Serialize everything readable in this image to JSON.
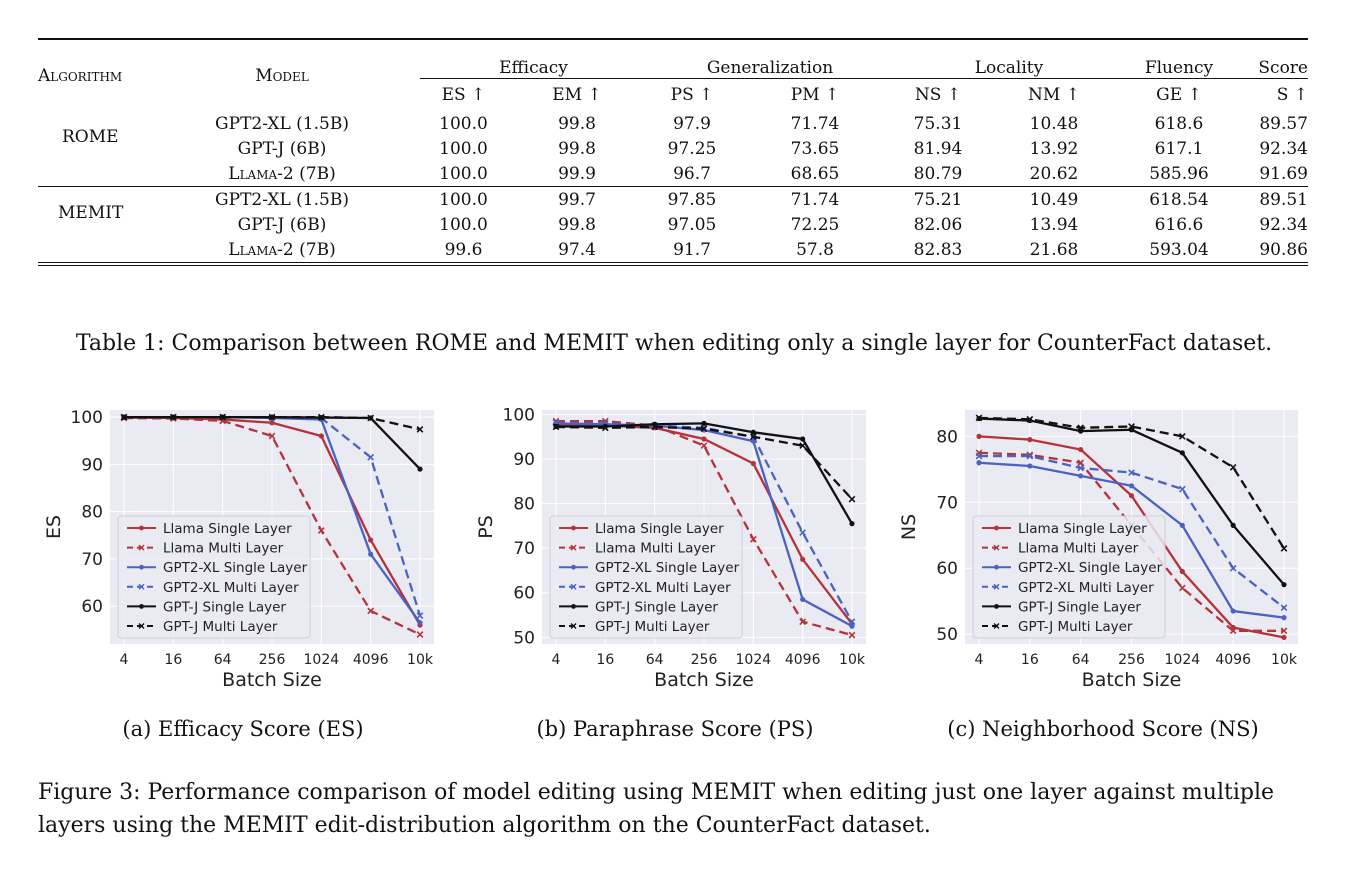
{
  "table": {
    "columns": {
      "algorithm": "Algorithm",
      "model": "Model",
      "groups": [
        {
          "name": "Efficacy",
          "cols": [
            "ES ↑",
            "EM ↑"
          ]
        },
        {
          "name": "Generalization",
          "cols": [
            "PS ↑",
            "PM ↑"
          ]
        },
        {
          "name": "Locality",
          "cols": [
            "NS ↑",
            "NM ↑"
          ]
        },
        {
          "name": "Fluency",
          "cols": [
            "GE ↑"
          ]
        },
        {
          "name": "Score",
          "cols": [
            "S ↑"
          ]
        }
      ]
    },
    "blocks": [
      {
        "algorithm": "ROME",
        "rows": [
          {
            "model": "GPT2-XL (1.5B)",
            "values": [
              "100.0",
              "99.8",
              "97.9",
              "71.74",
              "75.31",
              "10.48",
              "618.6",
              "89.57"
            ]
          },
          {
            "model": "GPT-J (6B)",
            "values": [
              "100.0",
              "99.8",
              "97.25",
              "73.65",
              "81.94",
              "13.92",
              "617.1",
              "92.34"
            ]
          },
          {
            "model": "Llama-2 (7B)",
            "values": [
              "100.0",
              "99.9",
              "96.7",
              "68.65",
              "80.79",
              "20.62",
              "585.96",
              "91.69"
            ]
          }
        ]
      },
      {
        "algorithm": "MEMIT",
        "rows": [
          {
            "model": "GPT2-XL (1.5B)",
            "values": [
              "100.0",
              "99.7",
              "97.85",
              "71.74",
              "75.21",
              "10.49",
              "618.54",
              "89.51"
            ]
          },
          {
            "model": "GPT-J (6B)",
            "values": [
              "100.0",
              "99.8",
              "97.05",
              "72.25",
              "82.06",
              "13.94",
              "616.6",
              "92.34"
            ]
          },
          {
            "model": "Llama-2 (7B)",
            "values": [
              "99.6",
              "97.4",
              "91.7",
              "57.8",
              "82.83",
              "21.68",
              "593.04",
              "90.86"
            ]
          }
        ]
      }
    ],
    "caption": "Table 1: Comparison between ROME and MEMIT when editing only a single layer for CounterFact dataset."
  },
  "figure": {
    "subcaptions": [
      "(a) Efficacy Score (ES)",
      "(b) Paraphrase Score (PS)",
      "(c) Neighborhood Score (NS)"
    ],
    "caption": "Figure 3: Performance comparison of model editing using MEMIT when editing just one layer against multiple layers using the MEMIT edit-distribution algorithm on the CounterFact dataset."
  },
  "colors": {
    "llama": "#b5323a",
    "gpt2xl": "#4a62c2",
    "gptj": "#111111",
    "plot_bg": "#eaeaf2",
    "grid": "#ffffff"
  },
  "chart_data": [
    {
      "type": "line",
      "title": "",
      "xlabel": "Batch Size",
      "ylabel": "ES",
      "x": [
        "4",
        "16",
        "64",
        "256",
        "1024",
        "4096",
        "10k"
      ],
      "ylim": [
        52,
        101.5
      ],
      "yticks": [
        60,
        70,
        80,
        90,
        100
      ],
      "grid": true,
      "legend": "lower-left",
      "series": [
        {
          "name": "Llama Single Layer",
          "values": [
            99.9,
            99.8,
            99.5,
            98.8,
            96.0,
            74.0,
            56.0
          ]
        },
        {
          "name": "Llama Multi Layer",
          "values": [
            99.8,
            99.7,
            99.2,
            96.0,
            76.0,
            59.0,
            54.0
          ]
        },
        {
          "name": "GPT2-XL Single Layer",
          "values": [
            100.0,
            100.0,
            100.0,
            99.8,
            99.5,
            71.0,
            56.5
          ]
        },
        {
          "name": "GPT2-XL Multi Layer",
          "values": [
            100.0,
            100.0,
            100.0,
            99.9,
            99.8,
            91.5,
            58.0
          ]
        },
        {
          "name": "GPT-J Single Layer",
          "values": [
            100.0,
            100.0,
            100.0,
            100.0,
            99.9,
            99.8,
            89.0
          ]
        },
        {
          "name": "GPT-J Multi Layer",
          "values": [
            100.0,
            100.0,
            100.0,
            100.0,
            100.0,
            99.8,
            97.4
          ]
        }
      ]
    },
    {
      "type": "line",
      "title": "",
      "xlabel": "Batch Size",
      "ylabel": "PS",
      "x": [
        "4",
        "16",
        "64",
        "256",
        "1024",
        "4096",
        "10k"
      ],
      "ylim": [
        48.5,
        101
      ],
      "yticks": [
        50,
        60,
        70,
        80,
        90,
        100
      ],
      "grid": true,
      "legend": "lower-left",
      "series": [
        {
          "name": "Llama Single Layer",
          "values": [
            97.5,
            97.5,
            97.0,
            94.5,
            89.0,
            67.5,
            53.0
          ]
        },
        {
          "name": "Llama Multi Layer",
          "values": [
            98.5,
            98.5,
            97.5,
            93.0,
            72.0,
            53.5,
            50.5
          ]
        },
        {
          "name": "GPT2-XL Single Layer",
          "values": [
            98.0,
            97.8,
            97.5,
            96.5,
            94.0,
            58.5,
            52.5
          ]
        },
        {
          "name": "GPT2-XL Multi Layer",
          "values": [
            98.2,
            98.0,
            97.5,
            97.0,
            95.0,
            73.5,
            53.5
          ]
        },
        {
          "name": "GPT-J Single Layer",
          "values": [
            97.3,
            97.3,
            97.8,
            98.0,
            96.0,
            94.5,
            75.5
          ]
        },
        {
          "name": "GPT-J Multi Layer",
          "values": [
            97.2,
            97.0,
            97.2,
            96.8,
            95.0,
            93.0,
            81.0
          ]
        }
      ]
    },
    {
      "type": "line",
      "title": "",
      "xlabel": "Batch Size",
      "ylabel": "NS",
      "x": [
        "4",
        "16",
        "64",
        "256",
        "1024",
        "4096",
        "10k"
      ],
      "ylim": [
        48.5,
        84
      ],
      "yticks": [
        50,
        60,
        70,
        80
      ],
      "grid": true,
      "legend": "lower-left",
      "series": [
        {
          "name": "Llama Single Layer",
          "values": [
            80.0,
            79.5,
            78.0,
            71.0,
            59.5,
            51.0,
            49.5
          ]
        },
        {
          "name": "Llama Multi Layer",
          "values": [
            77.5,
            77.2,
            76.0,
            66.5,
            57.0,
            50.5,
            50.5
          ]
        },
        {
          "name": "GPT2-XL Single Layer",
          "values": [
            76.0,
            75.5,
            74.0,
            72.5,
            66.5,
            53.5,
            52.5
          ]
        },
        {
          "name": "GPT2-XL Multi Layer",
          "values": [
            77.0,
            77.0,
            75.2,
            74.5,
            72.0,
            60.0,
            54.0
          ]
        },
        {
          "name": "GPT-J Single Layer",
          "values": [
            82.7,
            82.4,
            80.8,
            81.0,
            77.5,
            66.5,
            57.5
          ]
        },
        {
          "name": "GPT-J Multi Layer",
          "values": [
            82.8,
            82.6,
            81.3,
            81.5,
            80.0,
            75.3,
            63.0
          ]
        }
      ]
    }
  ]
}
